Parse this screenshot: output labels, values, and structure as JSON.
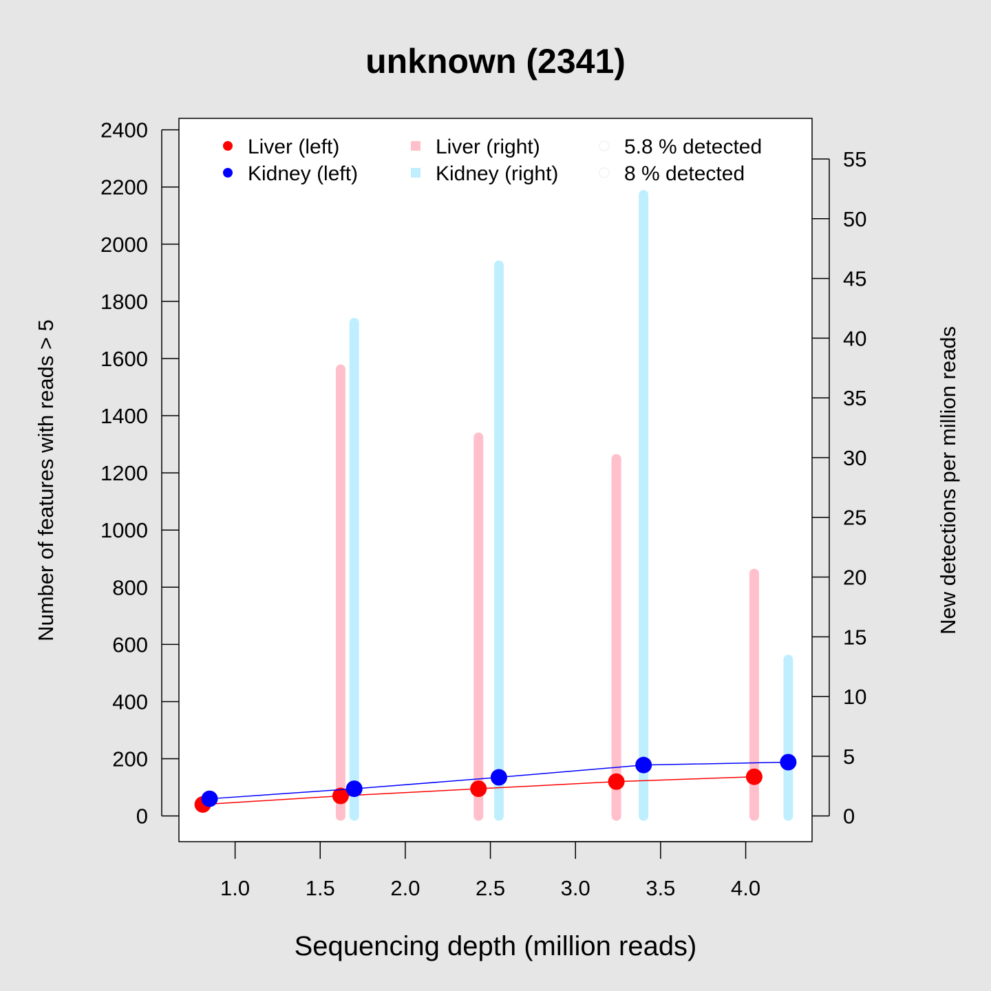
{
  "chart_data": {
    "type": "line",
    "title": "unknown (2341)",
    "xlabel": "Sequencing depth (million reads)",
    "ylabel_left": "Number of features with reads > 5",
    "ylabel_right": "New detections per million reads",
    "xlim": [
      0.67,
      4.39
    ],
    "ylim_left": [
      -90,
      2440
    ],
    "ylim_right": [
      -2.15,
      58.4
    ],
    "x_ticks": [
      "1.0",
      "1.5",
      "2.0",
      "2.5",
      "3.0",
      "3.5",
      "4.0"
    ],
    "x_tick_values": [
      1.0,
      1.5,
      2.0,
      2.5,
      3.0,
      3.5,
      4.0
    ],
    "y_left_ticks": [
      "0",
      "200",
      "400",
      "600",
      "800",
      "1000",
      "1200",
      "1400",
      "1600",
      "1800",
      "2000",
      "2200",
      "2400"
    ],
    "y_left_tick_values": [
      0,
      200,
      400,
      600,
      800,
      1000,
      1200,
      1400,
      1600,
      1800,
      2000,
      2200,
      2400
    ],
    "y_right_ticks": [
      "0",
      "5",
      "10",
      "15",
      "20",
      "25",
      "30",
      "35",
      "40",
      "45",
      "50",
      "55"
    ],
    "y_right_tick_values": [
      0,
      5,
      10,
      15,
      20,
      25,
      30,
      35,
      40,
      45,
      50,
      55
    ],
    "grid": false,
    "legend_position": "top",
    "series": [
      {
        "name": "Liver (left)",
        "kind": "line-points",
        "axis": "left",
        "color": "#ff0000",
        "x": [
          0.81,
          1.62,
          2.43,
          3.24,
          4.05
        ],
        "y": [
          40,
          70,
          95,
          120,
          137
        ]
      },
      {
        "name": "Kidney (left)",
        "kind": "line-points",
        "axis": "left",
        "color": "#0000ff",
        "x": [
          0.85,
          1.7,
          2.55,
          3.4,
          4.25
        ],
        "y": [
          60,
          95,
          135,
          178,
          188
        ]
      },
      {
        "name": "Liver (right)",
        "kind": "bars",
        "axis": "right",
        "color": "#ffc0cb",
        "x": [
          1.62,
          2.43,
          3.24,
          4.05
        ],
        "y": [
          37.4,
          31.7,
          29.9,
          20.3
        ]
      },
      {
        "name": "Kidney (right)",
        "kind": "bars",
        "axis": "right",
        "color": "#bfefff",
        "x": [
          1.7,
          2.55,
          3.4,
          4.25
        ],
        "y": [
          41.3,
          46.1,
          52.0,
          13.1
        ]
      }
    ],
    "legend": [
      {
        "label": "Liver (left)",
        "symbol": "circle",
        "color": "#ff0000"
      },
      {
        "label": "Kidney (left)",
        "symbol": "circle",
        "color": "#0000ff"
      },
      {
        "label": "Liver (right)",
        "symbol": "square",
        "color": "#ffc0cb"
      },
      {
        "label": "Kidney (right)",
        "symbol": "square",
        "color": "#bfefff"
      },
      {
        "label": "5.8 % detected",
        "symbol": "open-circle",
        "color": "#f2f2f2"
      },
      {
        "label": "8 % detected",
        "symbol": "open-circle",
        "color": "#f2f2f2"
      }
    ]
  }
}
